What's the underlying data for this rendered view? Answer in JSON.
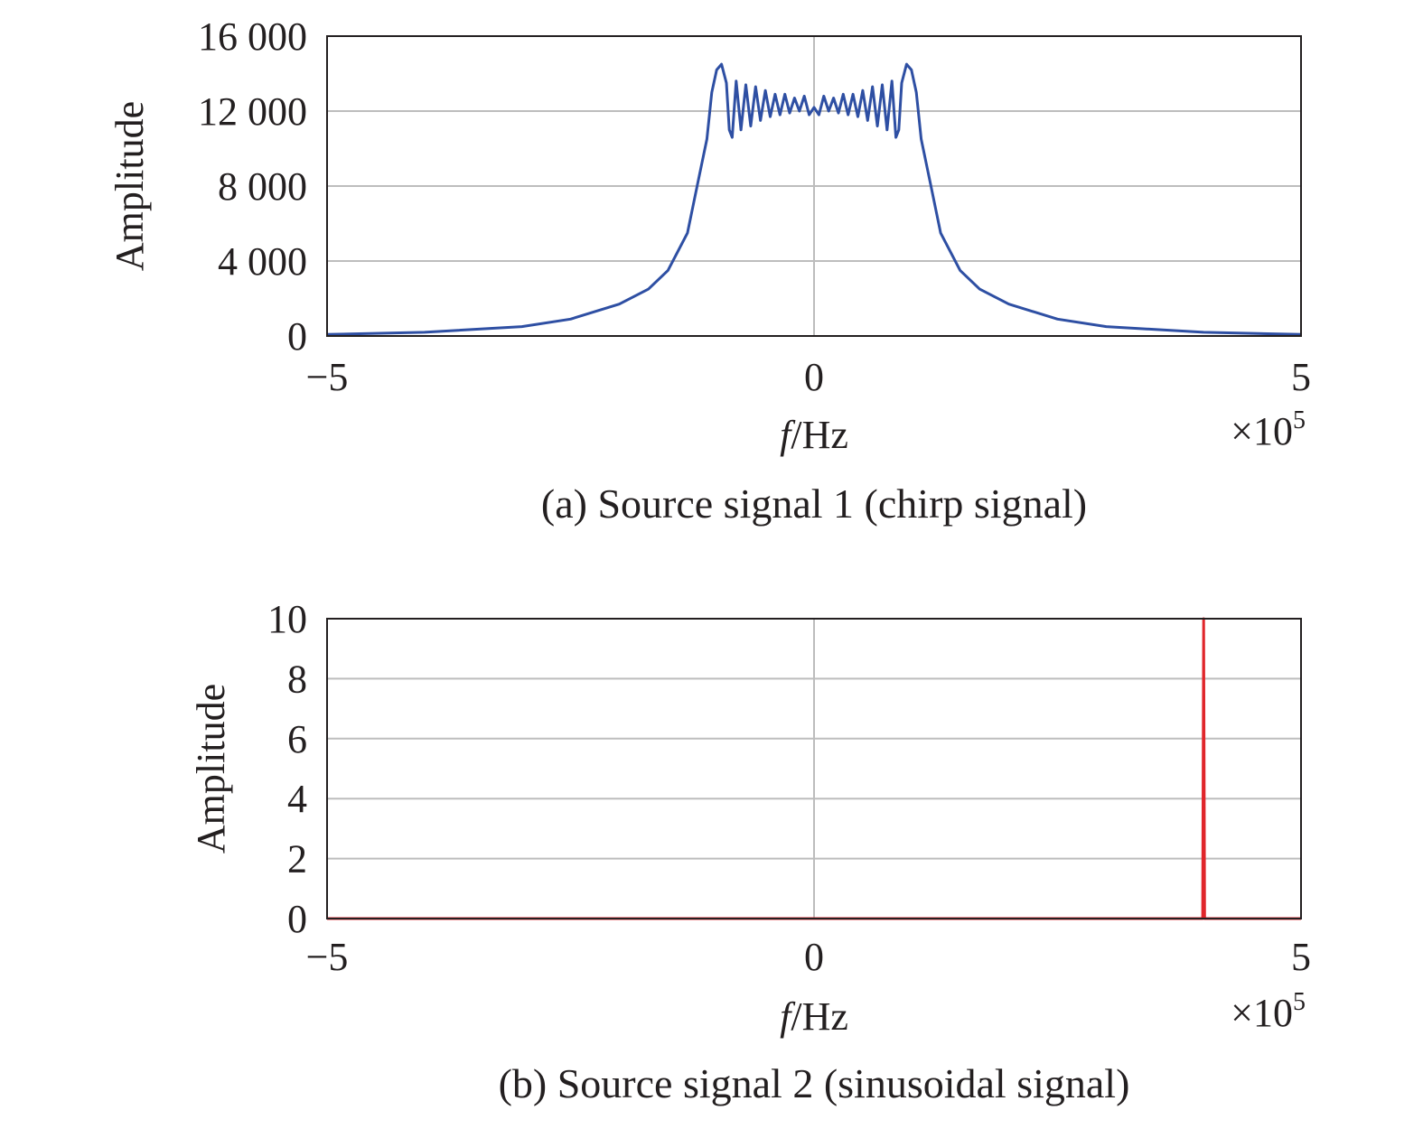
{
  "chart_data": [
    {
      "type": "line",
      "caption": "(a) Source signal 1 (chirp signal)",
      "xlabel_italic": "f",
      "xlabel_rest": "/Hz",
      "ylabel": "Amplitude",
      "xlim": [
        -500000,
        500000
      ],
      "ylim": [
        0,
        16000
      ],
      "xticks": [
        -500000,
        0,
        500000
      ],
      "xtick_labels": [
        "−5",
        "0",
        "5"
      ],
      "x_multiplier_base": "×10",
      "x_multiplier_exp": "5",
      "yticks": [
        0,
        4000,
        8000,
        12000,
        16000
      ],
      "ytick_labels": [
        "0",
        "4 000",
        "8 000",
        "12 000",
        "16 000"
      ],
      "grid": true,
      "series": [
        {
          "color": "#2e4fa3",
          "x": [
            -500000,
            -400000,
            -300000,
            -250000,
            -200000,
            -170000,
            -150000,
            -130000,
            -120000,
            -110000,
            -105000,
            -100000,
            -95000,
            -90000,
            -87000,
            -84000,
            -80000,
            -75000,
            -70000,
            -65000,
            -60000,
            -55000,
            -50000,
            -45000,
            -40000,
            -35000,
            -30000,
            -25000,
            -20000,
            -15000,
            -10000,
            -5000,
            0,
            5000,
            10000,
            15000,
            20000,
            25000,
            30000,
            35000,
            40000,
            45000,
            50000,
            55000,
            60000,
            65000,
            70000,
            75000,
            80000,
            84000,
            87000,
            90000,
            95000,
            100000,
            105000,
            110000,
            120000,
            130000,
            150000,
            170000,
            200000,
            250000,
            300000,
            400000,
            500000
          ],
          "y": [
            80,
            200,
            500,
            900,
            1700,
            2500,
            3500,
            5500,
            8000,
            10500,
            13000,
            14200,
            14500,
            13500,
            11000,
            10600,
            13600,
            11000,
            13400,
            11200,
            13300,
            11500,
            13100,
            11700,
            12900,
            11800,
            12900,
            11900,
            12700,
            12000,
            12800,
            11800,
            12200,
            11800,
            12800,
            12000,
            12700,
            11900,
            12900,
            11800,
            12900,
            11700,
            13100,
            11500,
            13300,
            11200,
            13400,
            11000,
            13600,
            10600,
            11000,
            13500,
            14500,
            14200,
            13000,
            10500,
            8000,
            5500,
            3500,
            2500,
            1700,
            900,
            500,
            200,
            80
          ]
        }
      ]
    },
    {
      "type": "line",
      "caption": "(b) Source signal 2 (sinusoidal signal)",
      "xlabel_italic": "f",
      "xlabel_rest": "/Hz",
      "ylabel": "Amplitude",
      "xlim": [
        -500000,
        500000
      ],
      "ylim": [
        0,
        10
      ],
      "xticks": [
        -500000,
        0,
        500000
      ],
      "xtick_labels": [
        "−5",
        "0",
        "5"
      ],
      "x_multiplier_base": "×10",
      "x_multiplier_exp": "5",
      "yticks": [
        0,
        2,
        4,
        6,
        8,
        10
      ],
      "ytick_labels": [
        "0",
        "2",
        "4",
        "6",
        "8",
        "10"
      ],
      "grid": true,
      "series": [
        {
          "color": "#e0262b",
          "x": [
            -500000,
            399000,
            400000,
            401000,
            500000
          ],
          "y": [
            0,
            0,
            10,
            0,
            0
          ]
        }
      ]
    }
  ]
}
